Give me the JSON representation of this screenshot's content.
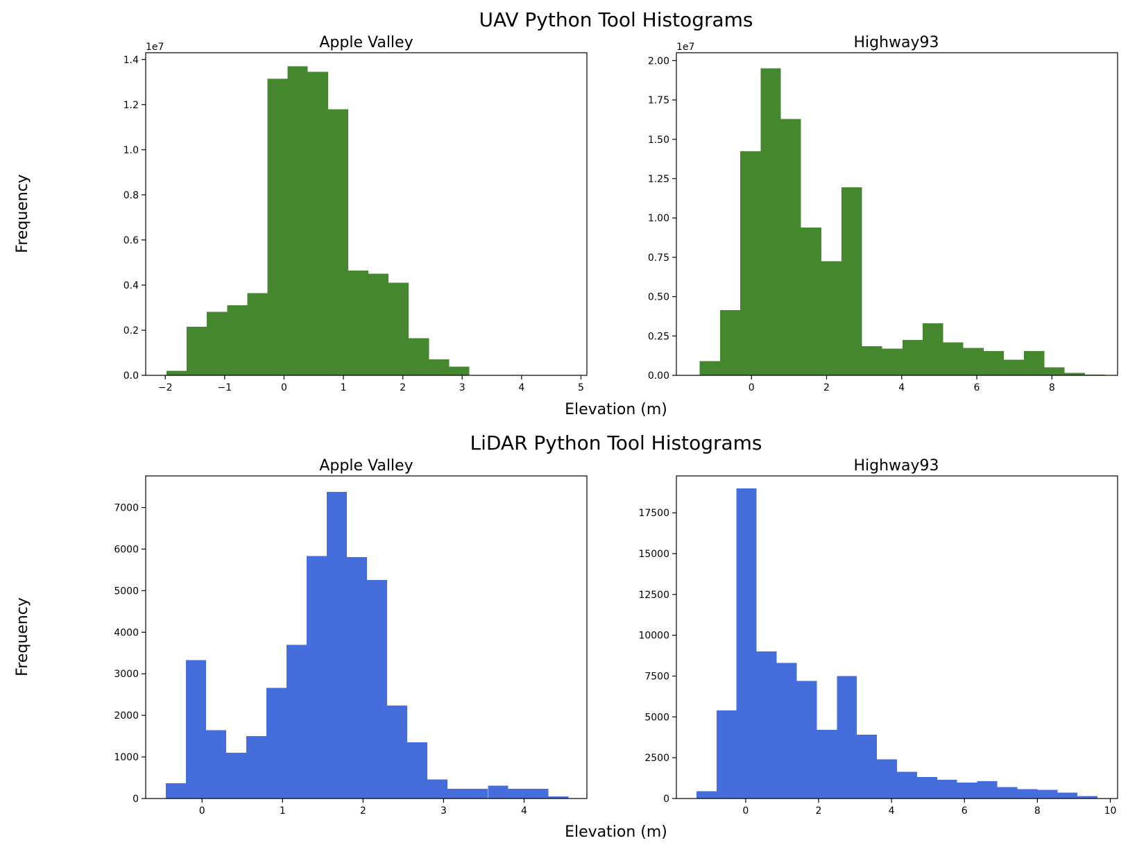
{
  "figure": {
    "rows": [
      {
        "title": "UAV Python Tool Histograms",
        "ylabel": "Frequency",
        "xlabel": "Elevation (m)"
      },
      {
        "title": "LiDAR Python Tool Histograms",
        "ylabel": "Frequency",
        "xlabel": "Elevation (m)"
      }
    ]
  },
  "chart_data": [
    {
      "type": "bar",
      "title": "Apple Valley",
      "group": "UAV Python Tool Histograms",
      "color": "#44872f",
      "xlabel": "Elevation (m)",
      "ylabel": "Frequency",
      "xlim": [
        -2.33,
        5.1
      ],
      "ylim": [
        0,
        14300000
      ],
      "xticks": [
        -2,
        -1,
        0,
        1,
        2,
        3,
        4,
        5
      ],
      "xtick_labels": [
        "−2",
        "−1",
        "0",
        "1",
        "2",
        "3",
        "4",
        "5"
      ],
      "yticks": [
        0,
        2000000,
        4000000,
        6000000,
        8000000,
        10000000,
        12000000,
        14000000
      ],
      "ytick_labels": [
        "0.0",
        "0.2",
        "0.4",
        "0.6",
        "0.8",
        "1.0",
        "1.2",
        "1.4"
      ],
      "offset_label": "1e7",
      "bin_edges": [
        -1.98,
        -1.64,
        -1.3,
        -0.96,
        -0.62,
        -0.28,
        0.06,
        0.4,
        0.74,
        1.08,
        1.42,
        1.76,
        2.1,
        2.44,
        2.78,
        3.12,
        3.46,
        3.8,
        4.14,
        4.48,
        4.82
      ],
      "values": [
        200000,
        2150000,
        2820000,
        3100000,
        3650000,
        13150000,
        13700000,
        13450000,
        11800000,
        4650000,
        4500000,
        4100000,
        1650000,
        700000,
        380000,
        0,
        0,
        0,
        0,
        0
      ]
    },
    {
      "type": "bar",
      "title": "Highway93",
      "group": "UAV Python Tool Histograms",
      "color": "#44872f",
      "xlabel": "Elevation (m)",
      "ylabel": "Frequency",
      "xlim": [
        -2.0,
        9.75
      ],
      "ylim": [
        0,
        20500000
      ],
      "xticks": [
        0,
        2,
        4,
        6,
        8
      ],
      "xtick_labels": [
        "0",
        "2",
        "4",
        "6",
        "8"
      ],
      "yticks": [
        0,
        2500000,
        5000000,
        7500000,
        10000000,
        12500000,
        15000000,
        17500000,
        20000000
      ],
      "ytick_labels": [
        "0.00",
        "0.25",
        "0.50",
        "0.75",
        "1.00",
        "1.25",
        "1.50",
        "1.75",
        "2.00"
      ],
      "offset_label": "1e7",
      "bin_edges": [
        -1.38,
        -0.84,
        -0.3,
        0.24,
        0.78,
        1.32,
        1.86,
        2.4,
        2.94,
        3.48,
        4.02,
        4.56,
        5.1,
        5.64,
        6.18,
        6.72,
        7.26,
        7.8,
        8.34,
        8.88,
        9.42
      ],
      "values": [
        900000,
        4150000,
        14250000,
        19500000,
        16300000,
        9400000,
        7250000,
        11950000,
        1850000,
        1700000,
        2250000,
        3300000,
        2100000,
        1750000,
        1550000,
        1000000,
        1550000,
        500000,
        150000,
        50000
      ]
    },
    {
      "type": "bar",
      "title": "Apple Valley",
      "group": "LiDAR Python Tool Histograms",
      "color": "#456ddb",
      "xlabel": "Elevation (m)",
      "ylabel": "Frequency",
      "xlim": [
        -0.7,
        4.78
      ],
      "ylim": [
        0,
        7760
      ],
      "xticks": [
        0,
        1,
        2,
        3,
        4
      ],
      "xtick_labels": [
        "0",
        "1",
        "2",
        "3",
        "4"
      ],
      "yticks": [
        0,
        1000,
        2000,
        3000,
        4000,
        5000,
        6000,
        7000
      ],
      "ytick_labels": [
        "0",
        "1000",
        "2000",
        "3000",
        "4000",
        "5000",
        "6000",
        "7000"
      ],
      "offset_label": "",
      "bin_edges": [
        -0.45,
        -0.2,
        0.05,
        0.3,
        0.55,
        0.8,
        1.05,
        1.3,
        1.55,
        1.8,
        2.05,
        2.3,
        2.55,
        2.8,
        3.05,
        3.3,
        3.55,
        3.8,
        4.05,
        4.3,
        4.55
      ],
      "values": [
        370,
        3330,
        1640,
        1100,
        1500,
        2660,
        3700,
        5830,
        7380,
        5810,
        5260,
        2240,
        1350,
        460,
        230,
        230,
        310,
        230,
        230,
        50
      ]
    },
    {
      "type": "bar",
      "title": "Highway93",
      "group": "LiDAR Python Tool Histograms",
      "color": "#456ddb",
      "xlabel": "Elevation (m)",
      "ylabel": "Frequency",
      "xlim": [
        -1.9,
        10.2
      ],
      "ylim": [
        0,
        19760
      ],
      "xticks": [
        0,
        2,
        4,
        6,
        8,
        10
      ],
      "xtick_labels": [
        "0",
        "2",
        "4",
        "6",
        "8",
        "10"
      ],
      "yticks": [
        0,
        2500,
        5000,
        7500,
        10000,
        12500,
        15000,
        17500
      ],
      "ytick_labels": [
        "0",
        "2500",
        "5000",
        "7500",
        "10000",
        "12500",
        "15000",
        "17500"
      ],
      "offset_label": "",
      "bin_edges": [
        -1.35,
        -0.8,
        -0.25,
        0.3,
        0.85,
        1.4,
        1.95,
        2.5,
        3.05,
        3.6,
        4.15,
        4.7,
        5.25,
        5.8,
        6.35,
        6.9,
        7.45,
        8.0,
        8.55,
        9.1,
        9.65
      ],
      "values": [
        450,
        5400,
        19000,
        9000,
        8300,
        7200,
        4200,
        7500,
        3900,
        2400,
        1630,
        1320,
        1150,
        980,
        1060,
        700,
        580,
        540,
        370,
        150
      ]
    }
  ]
}
